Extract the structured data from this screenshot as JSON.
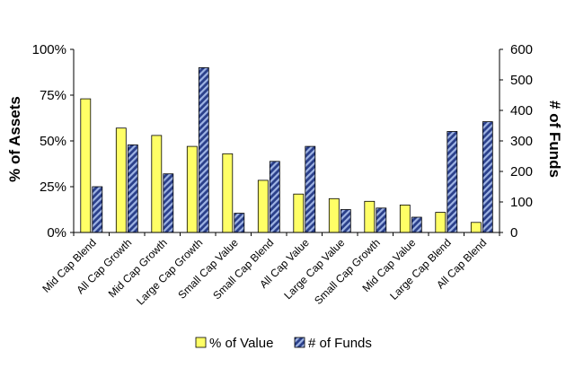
{
  "chart_data": {
    "type": "bar",
    "categories": [
      "Mid Cap Blend",
      "All Cap Growth",
      "Mid Cap Growth",
      "Large Cap Growth",
      "Small Cap Value",
      "Small Cap Blend",
      "All Cap Value",
      "Large Cap Value",
      "Small Cap Growth",
      "Mid Cap Value",
      "Large Cap Blend",
      "All Cap Blend"
    ],
    "series": [
      {
        "name": "% of Value",
        "axis": "left",
        "color": "#ffff66",
        "values": [
          73,
          57,
          53,
          47,
          43,
          28.5,
          21,
          18.5,
          17,
          15,
          11,
          5.5
        ]
      },
      {
        "name": "# of Funds",
        "axis": "right",
        "color": "#3b5ba8",
        "values": [
          150,
          287,
          192,
          540,
          63,
          233,
          282,
          75,
          80,
          50,
          331,
          363
        ]
      }
    ],
    "y_left": {
      "label": "% of Assets",
      "ticks": [
        "0%",
        "25%",
        "50%",
        "75%",
        "100%"
      ],
      "ylim": [
        0,
        100
      ]
    },
    "y_right": {
      "label": "# of Funds",
      "ticks": [
        "0",
        "100",
        "200",
        "300",
        "400",
        "500",
        "600"
      ],
      "ylim": [
        0,
        600
      ]
    },
    "legend_position": "bottom",
    "grid": false
  }
}
